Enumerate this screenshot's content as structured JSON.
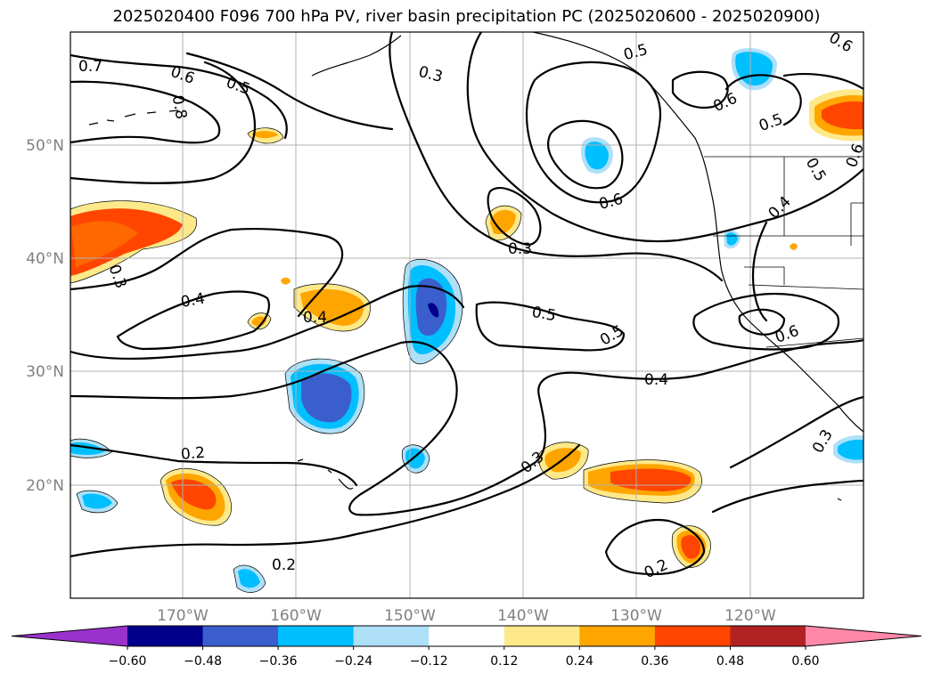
{
  "title": "2025020400 F096 700 hPa PV, river basin precipitation PC (2025020600 - 2025020900)",
  "lat_labels": [
    "50°N",
    "40°N",
    "30°N",
    "20°N"
  ],
  "lon_labels": [
    "170°W",
    "160°W",
    "150°W",
    "140°W",
    "130°W",
    "120°W"
  ],
  "contour_labels": [
    "0.7",
    "0.6",
    "0.5",
    "0.3",
    "0.5",
    "0.6",
    "0.8",
    "0.6",
    "0.5",
    "0.5",
    "0.4",
    "0.3",
    "0.3",
    "0.4",
    "0.4",
    "0.5",
    "0.5",
    "0.6",
    "0.4",
    "0.2",
    "0.3",
    "0.2",
    "0.2",
    "0.3",
    "0.6",
    "0.6"
  ],
  "colorbar": {
    "ticks": [
      "−0.60",
      "−0.48",
      "−0.36",
      "−0.24",
      "−0.12",
      "0.12",
      "0.24",
      "0.36",
      "0.48",
      "0.60"
    ],
    "colors": [
      "#9932cc",
      "#00008b",
      "#3a5fcd",
      "#00bfff",
      "#aee0f8",
      "#ffffff",
      "#fde98a",
      "#ffa500",
      "#ff4500",
      "#b22222",
      "#ff88aa"
    ]
  }
}
